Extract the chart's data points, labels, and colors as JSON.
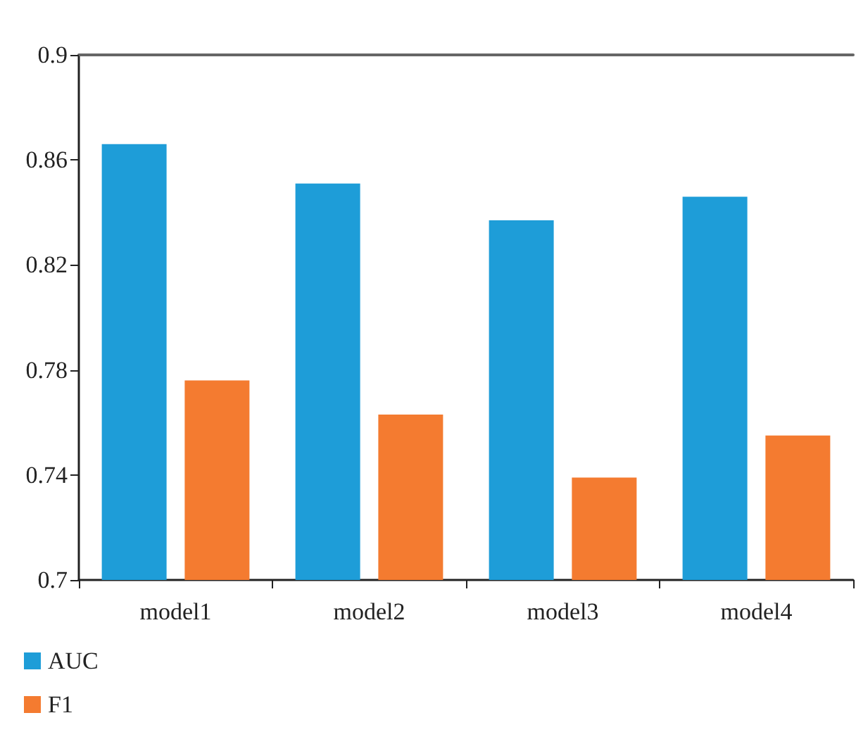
{
  "chart_data": {
    "type": "bar",
    "categories": [
      "model1",
      "model2",
      "model3",
      "model4"
    ],
    "series": [
      {
        "name": "AUC",
        "color": "#1e9dd8",
        "values": [
          0.866,
          0.851,
          0.837,
          0.846
        ]
      },
      {
        "name": "F1",
        "color": "#f47b30",
        "values": [
          0.776,
          0.763,
          0.739,
          0.755
        ]
      }
    ],
    "ylim": [
      0.7,
      0.9
    ],
    "yticks": [
      0.7,
      0.74,
      0.78,
      0.82,
      0.86,
      0.9
    ],
    "grid": false,
    "legend": "bottom left"
  }
}
